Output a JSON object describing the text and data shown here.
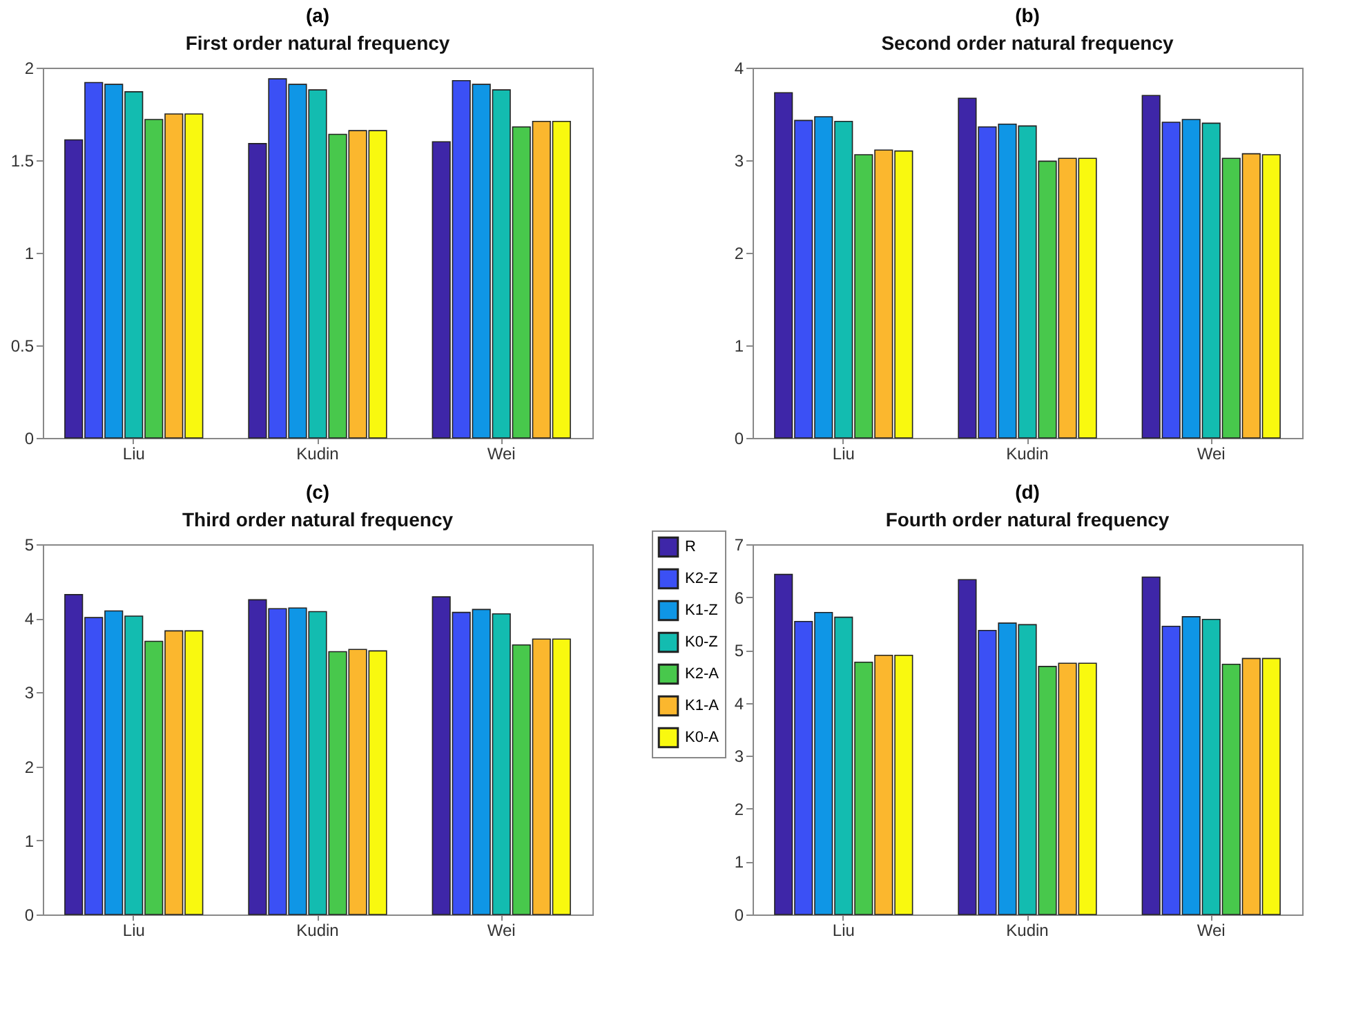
{
  "chart_data": [
    {
      "type": "bar",
      "title": "(a)",
      "subtitle": "First order natural frequency",
      "categories": [
        "Liu",
        "Kudin",
        "Wei"
      ],
      "ylim": [
        0,
        2
      ],
      "yticks": [
        0,
        0.5,
        1,
        1.5,
        2
      ],
      "legend": "right",
      "grid": false,
      "series": [
        {
          "name": "R",
          "color": "#3e26a8",
          "values": [
            1.61,
            1.59,
            1.6
          ]
        },
        {
          "name": "K2-Z",
          "color": "#3b50f5",
          "values": [
            1.92,
            1.94,
            1.93
          ]
        },
        {
          "name": "K1-Z",
          "color": "#0f96e6",
          "values": [
            1.91,
            1.91,
            1.91
          ]
        },
        {
          "name": "K0-Z",
          "color": "#13bcb0",
          "values": [
            1.87,
            1.88,
            1.88
          ]
        },
        {
          "name": "K2-A",
          "color": "#48c84c",
          "values": [
            1.72,
            1.64,
            1.68
          ]
        },
        {
          "name": "K1-A",
          "color": "#fbb72e",
          "values": [
            1.75,
            1.66,
            1.71
          ]
        },
        {
          "name": "K0-A",
          "color": "#f9f90f",
          "values": [
            1.75,
            1.66,
            1.71
          ]
        }
      ]
    },
    {
      "type": "bar",
      "title": "(b)",
      "subtitle": "Second order natural frequency",
      "categories": [
        "Liu",
        "Kudin",
        "Wei"
      ],
      "ylim": [
        0,
        4
      ],
      "yticks": [
        0,
        1,
        2,
        3,
        4
      ],
      "grid": false,
      "series": [
        {
          "name": "R",
          "color": "#3e26a8",
          "values": [
            3.73,
            3.67,
            3.7
          ]
        },
        {
          "name": "K2-Z",
          "color": "#3b50f5",
          "values": [
            3.43,
            3.36,
            3.41
          ]
        },
        {
          "name": "K1-Z",
          "color": "#0f96e6",
          "values": [
            3.47,
            3.39,
            3.44
          ]
        },
        {
          "name": "K0-Z",
          "color": "#13bcb0",
          "values": [
            3.42,
            3.37,
            3.4
          ]
        },
        {
          "name": "K2-A",
          "color": "#48c84c",
          "values": [
            3.06,
            2.99,
            3.02
          ]
        },
        {
          "name": "K1-A",
          "color": "#fbb72e",
          "values": [
            3.11,
            3.02,
            3.07
          ]
        },
        {
          "name": "K0-A",
          "color": "#f9f90f",
          "values": [
            3.1,
            3.02,
            3.06
          ]
        }
      ]
    },
    {
      "type": "bar",
      "title": "(c)",
      "subtitle": "Third order natural frequency",
      "categories": [
        "Liu",
        "Kudin",
        "Wei"
      ],
      "ylim": [
        0,
        5
      ],
      "yticks": [
        0,
        1,
        2,
        3,
        4,
        5
      ],
      "grid": false,
      "series": [
        {
          "name": "R",
          "color": "#3e26a8",
          "values": [
            4.32,
            4.25,
            4.29
          ]
        },
        {
          "name": "K2-Z",
          "color": "#3b50f5",
          "values": [
            4.01,
            4.13,
            4.08
          ]
        },
        {
          "name": "K1-Z",
          "color": "#0f96e6",
          "values": [
            4.1,
            4.14,
            4.12
          ]
        },
        {
          "name": "K0-Z",
          "color": "#13bcb0",
          "values": [
            4.03,
            4.09,
            4.06
          ]
        },
        {
          "name": "K2-A",
          "color": "#48c84c",
          "values": [
            3.69,
            3.55,
            3.64
          ]
        },
        {
          "name": "K1-A",
          "color": "#fbb72e",
          "values": [
            3.83,
            3.58,
            3.72
          ]
        },
        {
          "name": "K0-A",
          "color": "#f9f90f",
          "values": [
            3.83,
            3.56,
            3.72
          ]
        }
      ]
    },
    {
      "type": "bar",
      "title": "(d)",
      "subtitle": "Fourth order natural frequency",
      "categories": [
        "Liu",
        "Kudin",
        "Wei"
      ],
      "ylim": [
        0,
        7
      ],
      "yticks": [
        0,
        1,
        2,
        3,
        4,
        5,
        6,
        7
      ],
      "grid": false,
      "series": [
        {
          "name": "R",
          "color": "#3e26a8",
          "values": [
            6.43,
            6.33,
            6.38
          ]
        },
        {
          "name": "K2-Z",
          "color": "#3b50f5",
          "values": [
            5.54,
            5.37,
            5.45
          ]
        },
        {
          "name": "K1-Z",
          "color": "#0f96e6",
          "values": [
            5.71,
            5.51,
            5.63
          ]
        },
        {
          "name": "K0-Z",
          "color": "#13bcb0",
          "values": [
            5.62,
            5.48,
            5.58
          ]
        },
        {
          "name": "K2-A",
          "color": "#48c84c",
          "values": [
            4.77,
            4.69,
            4.73
          ]
        },
        {
          "name": "K1-A",
          "color": "#fbb72e",
          "values": [
            4.9,
            4.75,
            4.84
          ]
        },
        {
          "name": "K0-A",
          "color": "#f9f90f",
          "values": [
            4.9,
            4.75,
            4.84
          ]
        }
      ]
    }
  ]
}
